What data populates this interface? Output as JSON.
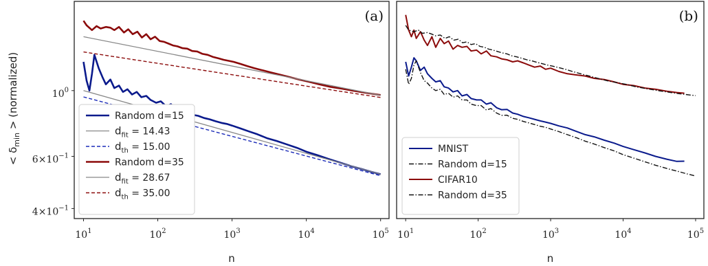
{
  "chart_data": [
    {
      "type": "line",
      "panel_label": "(a)",
      "xlabel": "n",
      "ylabel": "< δ_min > (normalized)",
      "xscale": "log",
      "yscale": "log",
      "xlim": [
        7.5,
        130000
      ],
      "ylim": [
        0.37,
        2.0
      ],
      "x_ticks": [
        {
          "base": "10",
          "exp": "1",
          "value": 10
        },
        {
          "base": "10",
          "exp": "2",
          "value": 100
        },
        {
          "base": "10",
          "exp": "3",
          "value": 1000
        },
        {
          "base": "10",
          "exp": "4",
          "value": 10000
        },
        {
          "base": "10",
          "exp": "5",
          "value": 100000
        }
      ],
      "y_ticks": [
        {
          "mant": "4×10",
          "exp": "−1",
          "value": 0.4
        },
        {
          "mant": "6×10",
          "exp": "−1",
          "value": 0.6
        },
        {
          "mant": "10",
          "exp": "0",
          "value": 1.0
        }
      ],
      "grid": false,
      "legend_position": "bottom-left",
      "series": [
        {
          "name": "Random d=15",
          "legend_parts": [
            "Random d=15"
          ],
          "style": "solid-thick",
          "color": "#0a1a8c",
          "x": [
            10,
            11,
            12,
            13,
            14,
            16,
            18,
            20,
            23,
            26,
            30,
            34,
            39,
            45,
            52,
            60,
            70,
            80,
            95,
            110,
            130,
            150,
            180,
            210,
            250,
            300,
            350,
            420,
            500,
            600,
            720,
            850,
            1000,
            1300,
            1700,
            2200,
            3000,
            4000,
            5500,
            7500,
            10000,
            14000,
            20000,
            28000,
            40000,
            55000,
            75000,
            100000
          ],
          "y": [
            1.25,
            1.08,
            1.0,
            1.14,
            1.32,
            1.19,
            1.11,
            1.05,
            1.09,
            1.02,
            1.04,
            0.99,
            1.01,
            0.97,
            0.99,
            0.95,
            0.96,
            0.93,
            0.91,
            0.92,
            0.885,
            0.9,
            0.862,
            0.846,
            0.851,
            0.828,
            0.822,
            0.808,
            0.8,
            0.788,
            0.778,
            0.772,
            0.762,
            0.745,
            0.728,
            0.712,
            0.69,
            0.676,
            0.658,
            0.641,
            0.622,
            0.606,
            0.588,
            0.572,
            0.556,
            0.544,
            0.532,
            0.522
          ]
        },
        {
          "name": "d_fit = 14.43",
          "legend_parts": [
            "d",
            "fit",
            " = 14.43"
          ],
          "style": "solid-thin",
          "color": "#888888",
          "x": [
            10,
            100000
          ],
          "y": [
            1.0,
            0.522
          ]
        },
        {
          "name": "d_th = 15.00",
          "legend_parts": [
            "d",
            "th",
            " = 15.00"
          ],
          "style": "dashed",
          "color": "#1a2ab8",
          "x": [
            10,
            100000
          ],
          "y": [
            0.952,
            0.516
          ]
        },
        {
          "name": "Random d=35",
          "legend_parts": [
            "Random d=35"
          ],
          "style": "solid-thick",
          "color": "#8b0a0a",
          "x": [
            10,
            11,
            13,
            15,
            17,
            20,
            23,
            26,
            30,
            35,
            40,
            46,
            53,
            61,
            70,
            80,
            92,
            106,
            122,
            140,
            160,
            185,
            215,
            250,
            290,
            340,
            400,
            470,
            550,
            650,
            770,
            900,
            1050,
            1300,
            1600,
            2000,
            2600,
            3400,
            4500,
            6000,
            8000,
            11000,
            15000,
            21000,
            30000,
            42000,
            60000,
            85000,
            100000
          ],
          "y": [
            1.72,
            1.66,
            1.6,
            1.65,
            1.62,
            1.64,
            1.63,
            1.6,
            1.64,
            1.57,
            1.61,
            1.55,
            1.58,
            1.51,
            1.55,
            1.49,
            1.52,
            1.47,
            1.46,
            1.44,
            1.42,
            1.41,
            1.39,
            1.385,
            1.36,
            1.355,
            1.33,
            1.32,
            1.3,
            1.285,
            1.27,
            1.26,
            1.25,
            1.23,
            1.21,
            1.19,
            1.17,
            1.15,
            1.13,
            1.11,
            1.09,
            1.07,
            1.05,
            1.03,
            1.015,
            1.0,
            0.985,
            0.972,
            0.966
          ]
        },
        {
          "name": "d_fit = 28.67",
          "legend_parts": [
            "d",
            "fit",
            " = 28.67"
          ],
          "style": "solid-thin",
          "color": "#888888",
          "x": [
            10,
            100000
          ],
          "y": [
            1.52,
            0.964
          ]
        },
        {
          "name": "d_th = 35.00",
          "legend_parts": [
            "d",
            "th",
            " = 35.00"
          ],
          "style": "dashed",
          "color": "#8b0a0a",
          "x": [
            10,
            100000
          ],
          "y": [
            1.35,
            0.948
          ]
        }
      ]
    },
    {
      "type": "line",
      "panel_label": "(b)",
      "xlabel": "n",
      "xscale": "log",
      "yscale": "log",
      "xlim": [
        7.5,
        130000
      ],
      "ylim": [
        0.37,
        2.0
      ],
      "x_ticks": [
        {
          "base": "10",
          "exp": "1",
          "value": 10
        },
        {
          "base": "10",
          "exp": "2",
          "value": 100
        },
        {
          "base": "10",
          "exp": "3",
          "value": 1000
        },
        {
          "base": "10",
          "exp": "4",
          "value": 10000
        },
        {
          "base": "10",
          "exp": "5",
          "value": 100000
        }
      ],
      "grid": false,
      "legend_position": "bottom-left",
      "series": [
        {
          "name": "MNIST",
          "legend_parts": [
            "MNIST"
          ],
          "style": "solid",
          "color": "#0a1a8c",
          "x": [
            10,
            11,
            12,
            13,
            14,
            16,
            18,
            20,
            23,
            26,
            30,
            34,
            39,
            45,
            52,
            60,
            70,
            80,
            95,
            110,
            130,
            150,
            180,
            210,
            250,
            300,
            350,
            420,
            500,
            600,
            720,
            850,
            1000,
            1300,
            1700,
            2200,
            3000,
            4000,
            5500,
            7500,
            10000,
            14000,
            20000,
            28000,
            40000,
            55000,
            70000
          ],
          "y": [
            1.25,
            1.12,
            1.2,
            1.29,
            1.26,
            1.17,
            1.2,
            1.14,
            1.1,
            1.07,
            1.08,
            1.03,
            1.02,
            0.99,
            1.0,
            0.96,
            0.97,
            0.94,
            0.93,
            0.93,
            0.9,
            0.91,
            0.875,
            0.862,
            0.864,
            0.84,
            0.832,
            0.818,
            0.81,
            0.8,
            0.79,
            0.783,
            0.775,
            0.76,
            0.748,
            0.73,
            0.71,
            0.698,
            0.68,
            0.665,
            0.648,
            0.632,
            0.616,
            0.6,
            0.587,
            0.577,
            0.578
          ]
        },
        {
          "name": "Random d=15",
          "legend_parts": [
            "Random d=15"
          ],
          "style": "dashdot",
          "color": "#111111",
          "x": [
            10,
            11,
            12,
            13,
            14,
            16,
            18,
            20,
            23,
            26,
            30,
            34,
            39,
            45,
            52,
            60,
            70,
            80,
            95,
            110,
            130,
            150,
            180,
            210,
            250,
            300,
            350,
            420,
            500,
            600,
            720,
            850,
            1000,
            1300,
            1700,
            2200,
            3000,
            4000,
            5500,
            7500,
            10000,
            14000,
            20000,
            28000,
            40000,
            55000,
            75000,
            100000
          ],
          "y": [
            1.18,
            1.05,
            1.1,
            1.22,
            1.26,
            1.15,
            1.08,
            1.06,
            1.02,
            1.0,
            1.01,
            0.97,
            0.98,
            0.95,
            0.96,
            0.93,
            0.93,
            0.9,
            0.89,
            0.89,
            0.86,
            0.87,
            0.84,
            0.825,
            0.826,
            0.806,
            0.8,
            0.787,
            0.778,
            0.768,
            0.758,
            0.752,
            0.742,
            0.727,
            0.71,
            0.695,
            0.675,
            0.66,
            0.642,
            0.626,
            0.608,
            0.592,
            0.575,
            0.56,
            0.546,
            0.535,
            0.524,
            0.515
          ]
        },
        {
          "name": "CIFAR10",
          "legend_parts": [
            "CIFAR10"
          ],
          "style": "solid",
          "color": "#8b0a0a",
          "x": [
            10,
            11,
            12,
            13,
            14,
            16,
            18,
            20,
            23,
            26,
            30,
            34,
            39,
            45,
            52,
            60,
            70,
            80,
            95,
            110,
            130,
            150,
            180,
            210,
            250,
            300,
            350,
            420,
            500,
            600,
            720,
            850,
            1000,
            1300,
            1700,
            2200,
            3000,
            4000,
            5500,
            7500,
            10000,
            14000,
            20000,
            28000,
            40000,
            55000,
            70000
          ],
          "y": [
            1.8,
            1.6,
            1.52,
            1.6,
            1.5,
            1.58,
            1.48,
            1.42,
            1.52,
            1.4,
            1.5,
            1.44,
            1.47,
            1.38,
            1.42,
            1.4,
            1.41,
            1.36,
            1.37,
            1.33,
            1.36,
            1.31,
            1.3,
            1.28,
            1.27,
            1.25,
            1.26,
            1.24,
            1.22,
            1.2,
            1.21,
            1.18,
            1.19,
            1.16,
            1.14,
            1.13,
            1.12,
            1.1,
            1.09,
            1.07,
            1.05,
            1.04,
            1.02,
            1.01,
            0.995,
            0.985,
            0.98
          ]
        },
        {
          "name": "Random d=35",
          "legend_parts": [
            "Random d=35"
          ],
          "style": "dashdot",
          "color": "#111111",
          "x": [
            10,
            11,
            13,
            15,
            17,
            20,
            23,
            26,
            30,
            35,
            40,
            46,
            53,
            61,
            70,
            80,
            92,
            106,
            122,
            140,
            160,
            185,
            215,
            250,
            290,
            340,
            400,
            470,
            550,
            650,
            770,
            900,
            1050,
            1300,
            1600,
            2000,
            2600,
            3400,
            4500,
            6000,
            8000,
            11000,
            15000,
            21000,
            30000,
            42000,
            60000,
            85000,
            100000
          ],
          "y": [
            1.66,
            1.6,
            1.58,
            1.6,
            1.56,
            1.57,
            1.55,
            1.53,
            1.54,
            1.5,
            1.52,
            1.48,
            1.49,
            1.45,
            1.46,
            1.43,
            1.44,
            1.41,
            1.4,
            1.38,
            1.37,
            1.355,
            1.34,
            1.33,
            1.31,
            1.3,
            1.285,
            1.27,
            1.26,
            1.245,
            1.232,
            1.22,
            1.21,
            1.195,
            1.18,
            1.16,
            1.14,
            1.12,
            1.1,
            1.08,
            1.065,
            1.05,
            1.03,
            1.015,
            1.0,
            0.988,
            0.976,
            0.966,
            0.962
          ]
        }
      ]
    }
  ]
}
